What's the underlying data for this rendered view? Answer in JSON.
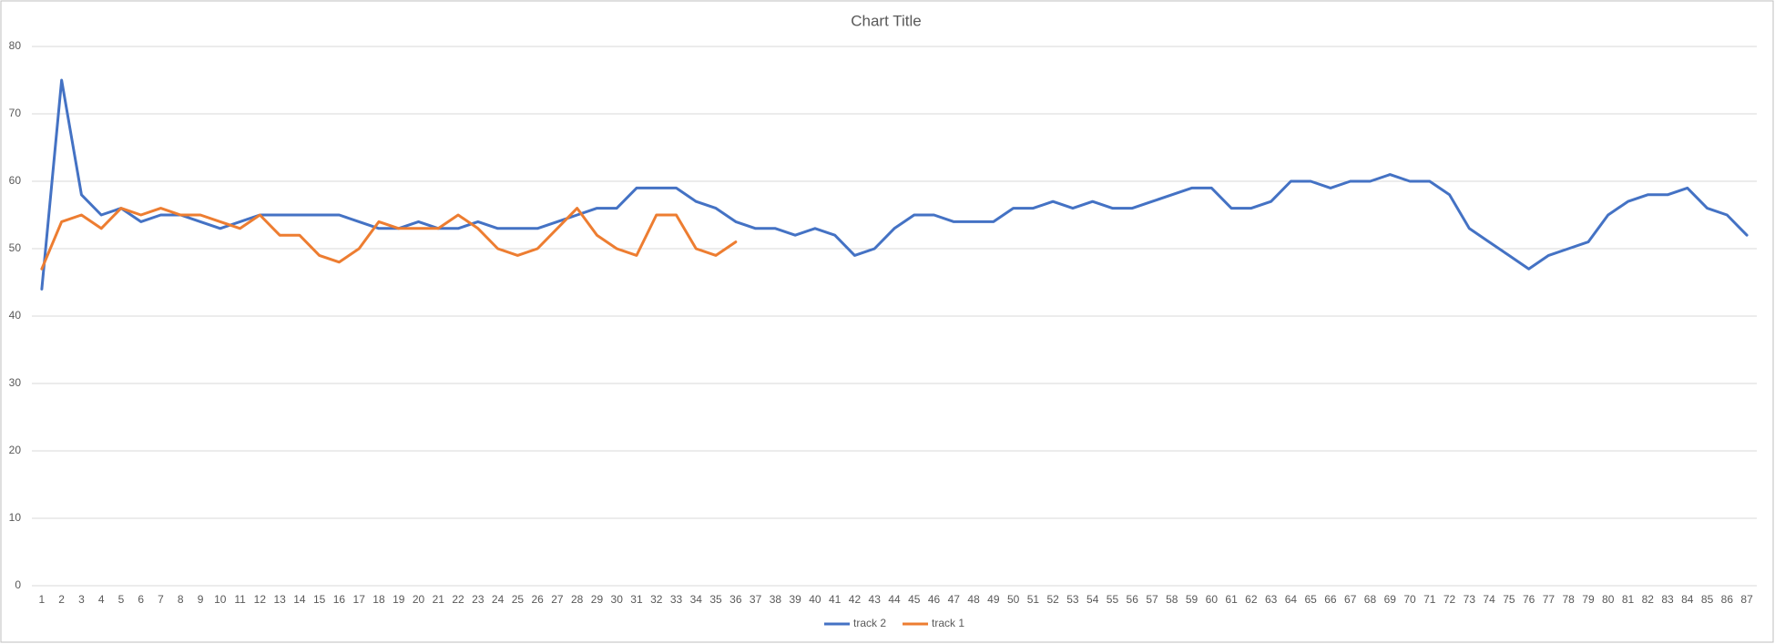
{
  "chart_data": {
    "type": "line",
    "title": "Chart Title",
    "categories": [
      1,
      2,
      3,
      4,
      5,
      6,
      7,
      8,
      9,
      10,
      11,
      12,
      13,
      14,
      15,
      16,
      17,
      18,
      19,
      20,
      21,
      22,
      23,
      24,
      25,
      26,
      27,
      28,
      29,
      30,
      31,
      32,
      33,
      34,
      35,
      36,
      37,
      38,
      39,
      40,
      41,
      42,
      43,
      44,
      45,
      46,
      47,
      48,
      49,
      50,
      51,
      52,
      53,
      54,
      55,
      56,
      57,
      58,
      59,
      60,
      61,
      62,
      63,
      64,
      65,
      66,
      67,
      68,
      69,
      70,
      71,
      72,
      73,
      74,
      75,
      76,
      77,
      78,
      79,
      80,
      81,
      82,
      83,
      84,
      85,
      86,
      87
    ],
    "series": [
      {
        "name": "track 2",
        "color": "#4472c4",
        "values": [
          44,
          75,
          58,
          55,
          56,
          54,
          55,
          55,
          54,
          53,
          54,
          55,
          55,
          55,
          55,
          55,
          54,
          53,
          53,
          54,
          53,
          53,
          54,
          53,
          53,
          53,
          54,
          55,
          56,
          56,
          59,
          59,
          59,
          57,
          56,
          54,
          53,
          53,
          52,
          53,
          52,
          49,
          50,
          53,
          55,
          55,
          54,
          54,
          54,
          56,
          56,
          57,
          56,
          57,
          56,
          56,
          57,
          58,
          59,
          59,
          56,
          56,
          57,
          60,
          60,
          59,
          60,
          60,
          61,
          60,
          60,
          58,
          53,
          51,
          49,
          47,
          49,
          50,
          51,
          55,
          57,
          58,
          58,
          59,
          56,
          55,
          52
        ]
      },
      {
        "name": "track 1",
        "color": "#ed7d31",
        "values": [
          47,
          54,
          55,
          53,
          56,
          55,
          56,
          55,
          55,
          54,
          53,
          55,
          52,
          52,
          49,
          48,
          50,
          54,
          53,
          53,
          53,
          55,
          53,
          50,
          49,
          50,
          53,
          56,
          52,
          50,
          49,
          55,
          55,
          50,
          49,
          51,
          null,
          null,
          null,
          null,
          null,
          null,
          null,
          null,
          null,
          null,
          null,
          null,
          null,
          null,
          null,
          null,
          null,
          null,
          null,
          null,
          null,
          null,
          null,
          null,
          null,
          null,
          null,
          null,
          null,
          null,
          null,
          null,
          null,
          null,
          null,
          null,
          null,
          null,
          null,
          null,
          null,
          null,
          null,
          null,
          null,
          null,
          null,
          null,
          null,
          null,
          null
        ]
      }
    ],
    "ylim": [
      0,
      80
    ],
    "yticks": [
      0,
      10,
      20,
      30,
      40,
      50,
      60,
      70,
      80
    ],
    "grid": true,
    "legend": "bottom"
  }
}
